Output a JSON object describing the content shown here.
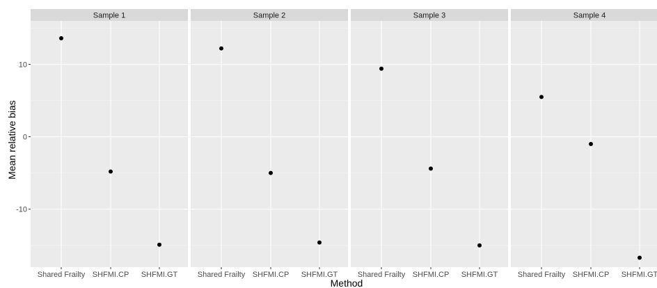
{
  "chart_data": {
    "type": "scatter",
    "xlabel": "Method",
    "ylabel": "Mean relative bias",
    "ylim": [
      -18,
      16
    ],
    "yticks": [
      {
        "value": 10,
        "label": "10"
      },
      {
        "value": 0,
        "label": "0"
      },
      {
        "value": -10,
        "label": "-10"
      }
    ],
    "categories": [
      "Shared Frailty",
      "SHFMI.CP",
      "SHFMI.GT"
    ],
    "grid": true,
    "facets": [
      {
        "name": "Sample 1",
        "values": [
          13.6,
          -4.8,
          -14.9
        ]
      },
      {
        "name": "Sample 2",
        "values": [
          12.2,
          -5.0,
          -14.6
        ]
      },
      {
        "name": "Sample 3",
        "values": [
          9.4,
          -4.4,
          -15.0
        ]
      },
      {
        "name": "Sample 4",
        "values": [
          5.5,
          -1.0,
          -16.7
        ]
      }
    ],
    "colors": {
      "panel_bg": "#ebebeb",
      "strip_bg": "#d9d9d9",
      "grid_major": "#ffffff",
      "point": "#000000"
    }
  }
}
